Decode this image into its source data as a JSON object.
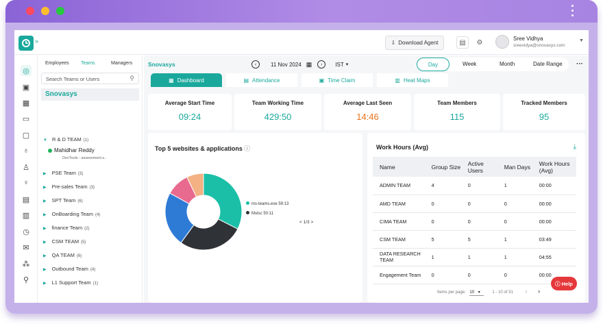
{
  "header": {
    "download_label": "Download Agent",
    "user_name": "Sree Vidhya",
    "user_email": "sreevidya@snovasys.com"
  },
  "team_panel": {
    "tabs": [
      "Employees",
      "Teams",
      "Managers"
    ],
    "active_tab": "Teams",
    "search_placeholder": "Search Teams or Users",
    "org_name": "Snovasys",
    "teams": [
      {
        "name": "R & D TEAM",
        "count": "(1)"
      },
      {
        "name": "PSE Team",
        "count": "(3)"
      },
      {
        "name": "Pre-sales Team",
        "count": "(3)"
      },
      {
        "name": "SPT Team",
        "count": "(6)"
      },
      {
        "name": "OnBoarding Team",
        "count": "(4)"
      },
      {
        "name": "finance Team",
        "count": "(2)"
      },
      {
        "name": "CSM TEAM",
        "count": "(5)"
      },
      {
        "name": "QA TEAM",
        "count": "(6)"
      },
      {
        "name": "Outbound Team",
        "count": "(4)"
      },
      {
        "name": "L1 Support Team",
        "count": "(1)"
      }
    ],
    "member": {
      "name": "Mahidhar Reddy",
      "activity": "DevTools - assessment.s.."
    }
  },
  "main": {
    "org_name": "Snovasys",
    "date": "11 Nov 2024",
    "timezone": "IST",
    "ranges": [
      "Day",
      "Week",
      "Month",
      "Date Range"
    ],
    "active_range": "Day",
    "tabs": [
      "Dashboard",
      "Attendance",
      "Time Claim",
      "Heat Maps"
    ],
    "active_tab": "Dashboard",
    "stats": [
      {
        "label": "Average Start Time",
        "value": "09:24",
        "color": "#1aa89c"
      },
      {
        "label": "Team Working Time",
        "value": "429:50",
        "color": "#1aa89c"
      },
      {
        "label": "Average Last Seen",
        "value": "14:46",
        "color": "#e8731a"
      },
      {
        "label": "Team Members",
        "value": "115",
        "color": "#1aa89c"
      },
      {
        "label": "Tracked Members",
        "value": "95",
        "color": "#1aa89c"
      }
    ]
  },
  "websites": {
    "title": "Top 5 websites & applications",
    "legend": [
      "ms-teams.exe 59:13",
      "Mstsc 50:11"
    ],
    "page": "< 1/3 >"
  },
  "work_hours": {
    "title": "Work Hours (Avg)",
    "columns": [
      "Name",
      "Group Size",
      "Active Users",
      "Man Days",
      "Work Hours (Avg)"
    ],
    "rows": [
      [
        "ADMIN TEAM",
        "4",
        "0",
        "1",
        "00:00"
      ],
      [
        "AMD TEAM",
        "0",
        "0",
        "0",
        "00:00"
      ],
      [
        "CIMA TEAM",
        "0",
        "0",
        "0",
        "00:00"
      ],
      [
        "CSM TEAM",
        "5",
        "5",
        "1",
        "03:49"
      ],
      [
        "DATA RESEARCH TEAM",
        "1",
        "1",
        "1",
        "04:55"
      ],
      [
        "Engagement Team",
        "0",
        "0",
        "0",
        "00:00"
      ]
    ],
    "items_per_page_label": "Items per page:",
    "items_per_page": "10",
    "range_text": "1 - 10 of 31"
  },
  "help_label": "Help",
  "chart_data": {
    "type": "pie",
    "title": "Top 5 websites & applications",
    "slices": [
      {
        "name": "ms-teams.exe",
        "value": 59.22,
        "color": "#1bbfa8"
      },
      {
        "name": "Mstsc",
        "value": 50.18,
        "color": "#2f3337"
      },
      {
        "name": "",
        "value": 42,
        "color": "#2e7bd6"
      },
      {
        "name": "",
        "value": 18,
        "color": "#e86a8e"
      },
      {
        "name": "",
        "value": 13,
        "color": "#f4b183"
      }
    ]
  }
}
